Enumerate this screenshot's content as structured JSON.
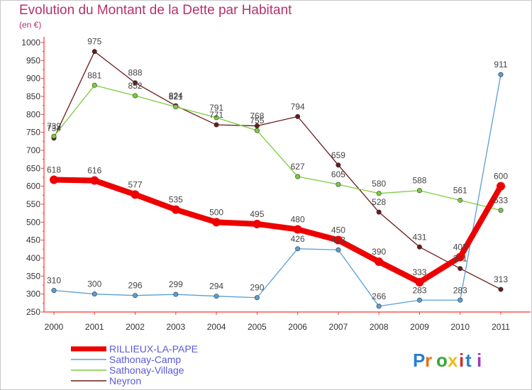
{
  "title": "Evolution du Montant de la Dette par Habitant",
  "subtitle": "(en €)",
  "logo_text": "Proxiti",
  "chart_data": {
    "type": "line",
    "x": [
      "2000",
      "2001",
      "2002",
      "2003",
      "2004",
      "2005",
      "2006",
      "2007",
      "2008",
      "2009",
      "2010",
      "2011"
    ],
    "ylim": [
      250,
      1000
    ],
    "yticks": [
      250,
      300,
      350,
      400,
      450,
      500,
      550,
      600,
      650,
      700,
      750,
      800,
      850,
      900,
      950,
      1000
    ],
    "grid": false,
    "legend_position": "bottom-left",
    "series": [
      {
        "name": "Neyron",
        "color": "#6b1a1a",
        "values": [
          734,
          975,
          888,
          824,
          771,
          768,
          794,
          659,
          528,
          431,
          371,
          313
        ],
        "labels": [
          "734",
          "975",
          "888",
          "824",
          "771",
          "768",
          "794",
          "659",
          "528",
          "431",
          "371",
          "313"
        ]
      },
      {
        "name": "Sathonay-Village",
        "color": "#7ccc3e",
        "values": [
          739,
          881,
          852,
          821,
          791,
          755,
          627,
          605,
          580,
          588,
          561,
          533
        ],
        "labels": [
          "739",
          "881",
          "852",
          "821",
          "791",
          "755",
          "627",
          "605",
          "580",
          "588",
          "561",
          "533"
        ]
      },
      {
        "name": "Sathonay-Camp",
        "color": "#5a9fd4",
        "values": [
          310,
          300,
          296,
          299,
          294,
          290,
          426,
          423,
          266,
          283,
          283,
          911
        ],
        "labels": [
          "310",
          "300",
          "296",
          "299",
          "294",
          "290",
          "426",
          "423",
          "266",
          "283",
          "283",
          "911"
        ]
      },
      {
        "name": "RILLIEUX-LA-PAPE",
        "color": "#ee0000",
        "values": [
          618,
          616,
          577,
          535,
          500,
          495,
          480,
          450,
          390,
          333,
          403,
          600
        ],
        "labels": [
          "618",
          "616",
          "577",
          "535",
          "500",
          "495",
          "480",
          "450",
          "390",
          "333",
          "403",
          "600"
        ]
      }
    ]
  }
}
